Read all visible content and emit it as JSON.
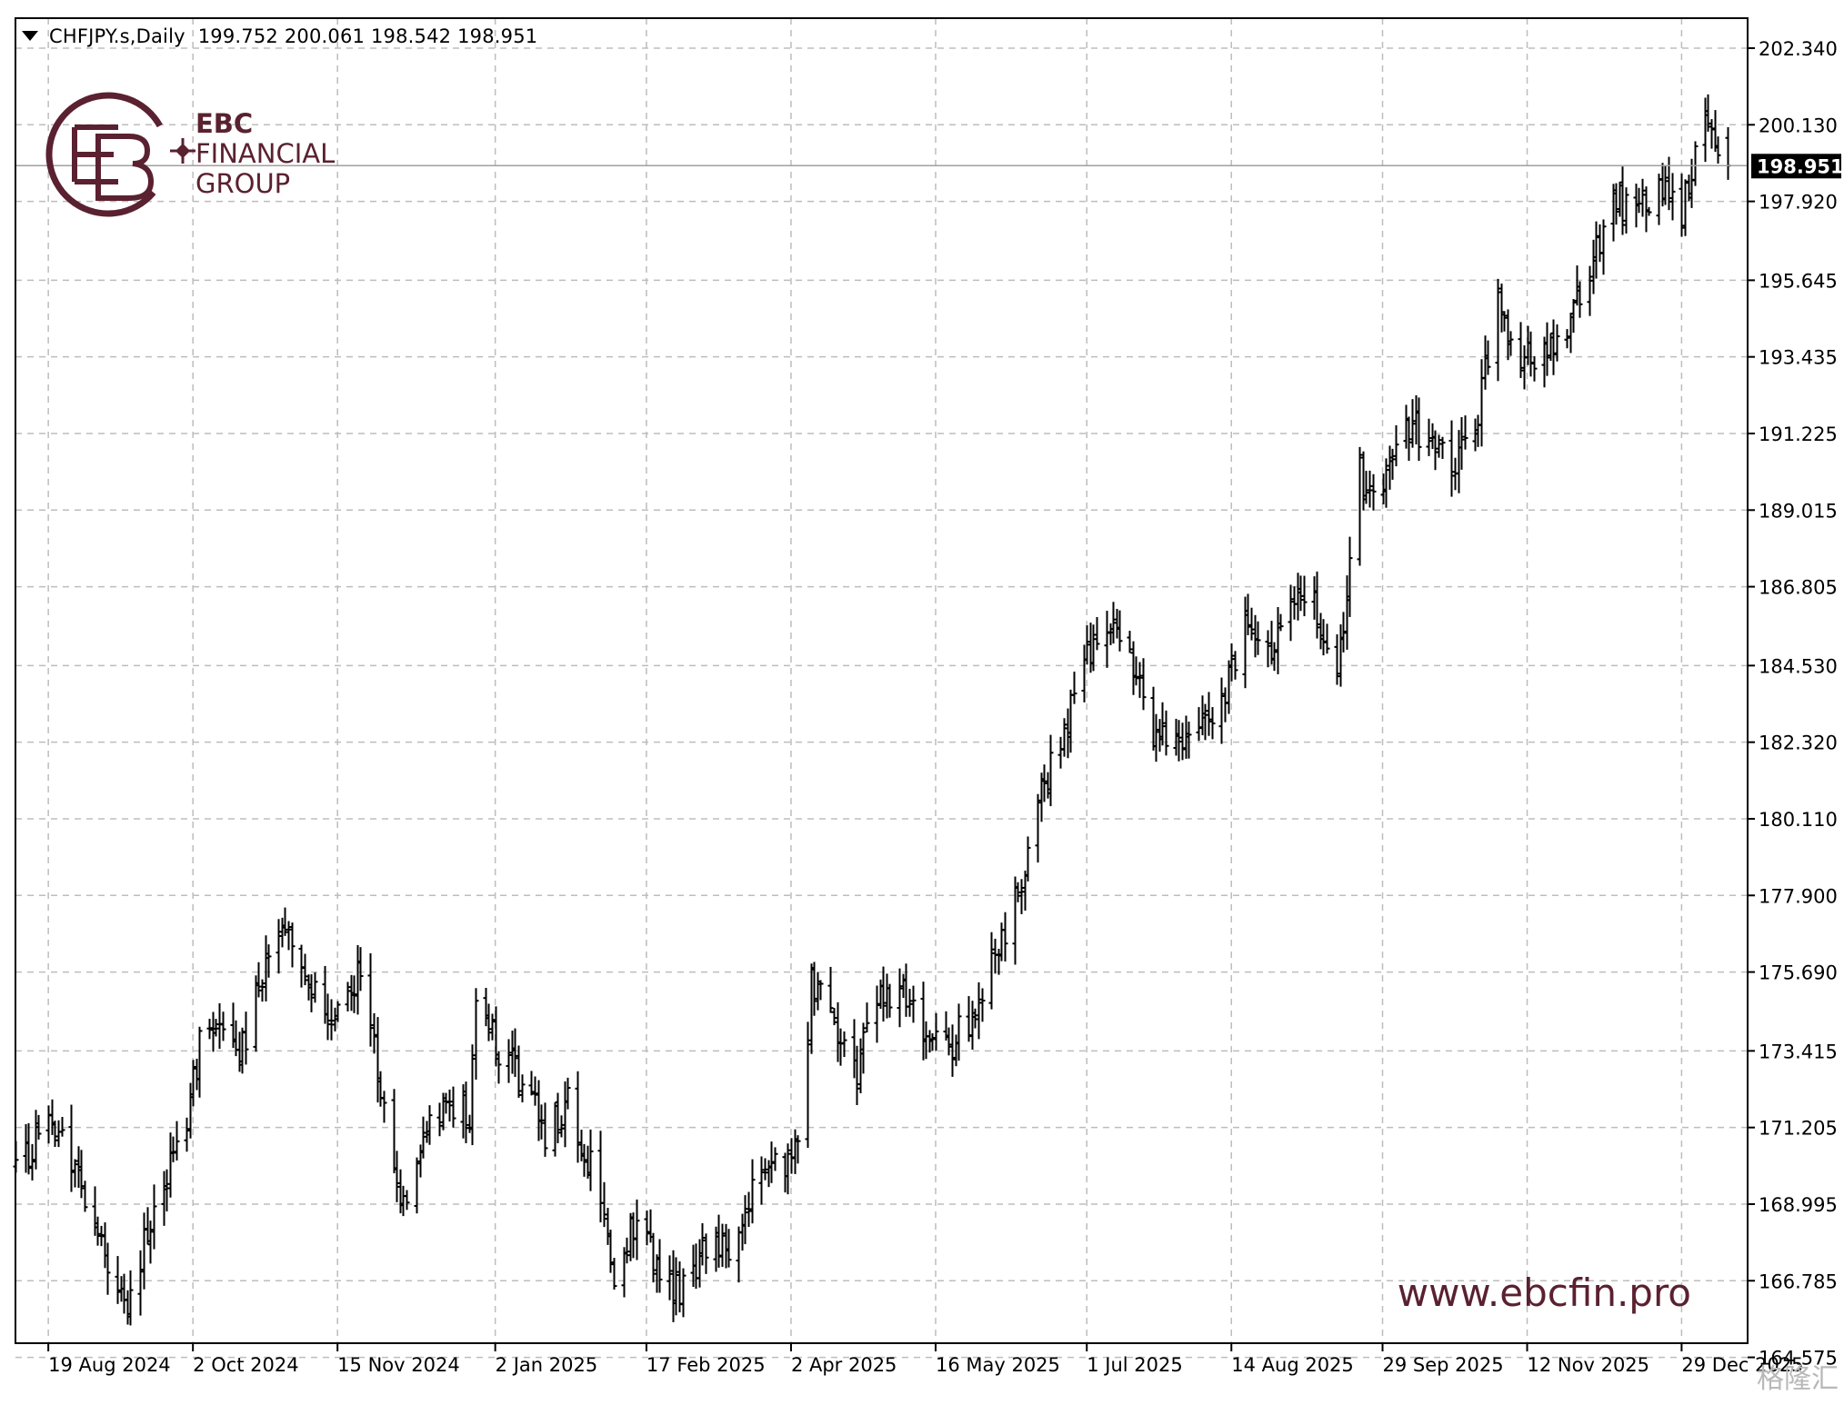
{
  "window": {
    "symbol_title": "CHFJPY.s,Daily",
    "ohlc": "199.752 200.061 198.542 198.951"
  },
  "brand": {
    "line1": "EBC",
    "line2": "FINANCIAL",
    "line3": "GROUP",
    "website": "www.ebcfin.pro",
    "watermark": "格隆汇"
  },
  "colors": {
    "brand": "#5a2130",
    "bars": "#000000",
    "grid": "#bdbdbd",
    "price_line": "#a0a0a0",
    "price_tag_bg": "#000000",
    "price_tag_text": "#ffffff"
  },
  "chart_data": {
    "type": "ohlc-bar",
    "symbol": "CHFJPY.s",
    "timeframe": "Daily",
    "current_price": 198.951,
    "current_price_label": "198.951",
    "ylim": [
      164.0,
      203.0
    ],
    "y_ticks": [
      "202.340",
      "200.130",
      "197.920",
      "195.645",
      "193.435",
      "191.225",
      "189.015",
      "186.805",
      "184.530",
      "182.320",
      "180.110",
      "177.900",
      "175.690",
      "173.415",
      "171.205",
      "168.995",
      "166.785",
      "164.575"
    ],
    "x_ticks": [
      "19 Aug 2024",
      "2 Oct 2024",
      "15 Nov 2024",
      "2 Jan 2025",
      "17 Feb 2025",
      "2 Apr 2025",
      "16 May 2025",
      "1 Jul 2025",
      "14 Aug 2025",
      "29 Sep 2025",
      "12 Nov 2025",
      "29 Dec 2025"
    ],
    "grid": true,
    "close_path": [
      {
        "date": "2024-08-09",
        "close": 170.0
      },
      {
        "date": "2024-08-16",
        "close": 171.0
      },
      {
        "date": "2024-08-23",
        "close": 171.5
      },
      {
        "date": "2024-08-30",
        "close": 169.0
      },
      {
        "date": "2024-09-06",
        "close": 167.0
      },
      {
        "date": "2024-09-11",
        "close": 166.0
      },
      {
        "date": "2024-09-18",
        "close": 168.0
      },
      {
        "date": "2024-09-25",
        "close": 170.0
      },
      {
        "date": "2024-09-30",
        "close": 171.5
      },
      {
        "date": "2024-10-04",
        "close": 173.5
      },
      {
        "date": "2024-10-11",
        "close": 174.0
      },
      {
        "date": "2024-10-18",
        "close": 173.5
      },
      {
        "date": "2024-10-25",
        "close": 176.5
      },
      {
        "date": "2024-10-31",
        "close": 177.0
      },
      {
        "date": "2024-11-07",
        "close": 175.5
      },
      {
        "date": "2024-11-14",
        "close": 174.5
      },
      {
        "date": "2024-11-21",
        "close": 175.5
      },
      {
        "date": "2024-11-28",
        "close": 172.5
      },
      {
        "date": "2024-12-04",
        "close": 169.0
      },
      {
        "date": "2024-12-11",
        "close": 171.0
      },
      {
        "date": "2024-12-18",
        "close": 172.0
      },
      {
        "date": "2024-12-25",
        "close": 171.5
      },
      {
        "date": "2024-12-27",
        "close": 175.0
      },
      {
        "date": "2025-01-03",
        "close": 173.5
      },
      {
        "date": "2025-01-10",
        "close": 172.5
      },
      {
        "date": "2025-01-17",
        "close": 171.0
      },
      {
        "date": "2025-01-24",
        "close": 172.0
      },
      {
        "date": "2025-01-31",
        "close": 170.0
      },
      {
        "date": "2025-02-07",
        "close": 167.0
      },
      {
        "date": "2025-02-14",
        "close": 168.5
      },
      {
        "date": "2025-02-21",
        "close": 167.0
      },
      {
        "date": "2025-02-28",
        "close": 166.5
      },
      {
        "date": "2025-03-07",
        "close": 168.0
      },
      {
        "date": "2025-03-14",
        "close": 167.5
      },
      {
        "date": "2025-03-21",
        "close": 169.5
      },
      {
        "date": "2025-03-28",
        "close": 170.0
      },
      {
        "date": "2025-04-04",
        "close": 170.5
      },
      {
        "date": "2025-04-08",
        "close": 175.5
      },
      {
        "date": "2025-04-15",
        "close": 174.0
      },
      {
        "date": "2025-04-22",
        "close": 173.0
      },
      {
        "date": "2025-04-29",
        "close": 175.0
      },
      {
        "date": "2025-05-06",
        "close": 175.5
      },
      {
        "date": "2025-05-13",
        "close": 173.5
      },
      {
        "date": "2025-05-20",
        "close": 173.5
      },
      {
        "date": "2025-05-27",
        "close": 174.5
      },
      {
        "date": "2025-06-03",
        "close": 176.0
      },
      {
        "date": "2025-06-10",
        "close": 178.0
      },
      {
        "date": "2025-06-17",
        "close": 181.0
      },
      {
        "date": "2025-06-24",
        "close": 182.5
      },
      {
        "date": "2025-06-30",
        "close": 185.0
      },
      {
        "date": "2025-07-07",
        "close": 185.5
      },
      {
        "date": "2025-07-14",
        "close": 185.0
      },
      {
        "date": "2025-07-21",
        "close": 182.5
      },
      {
        "date": "2025-07-28",
        "close": 182.5
      },
      {
        "date": "2025-08-04",
        "close": 183.0
      },
      {
        "date": "2025-08-11",
        "close": 183.5
      },
      {
        "date": "2025-08-18",
        "close": 185.5
      },
      {
        "date": "2025-08-25",
        "close": 185.0
      },
      {
        "date": "2025-09-01",
        "close": 186.0
      },
      {
        "date": "2025-09-08",
        "close": 186.5
      },
      {
        "date": "2025-09-15",
        "close": 184.0
      },
      {
        "date": "2025-09-22",
        "close": 190.0
      },
      {
        "date": "2025-09-29",
        "close": 189.5
      },
      {
        "date": "2025-10-06",
        "close": 191.5
      },
      {
        "date": "2025-10-13",
        "close": 191.0
      },
      {
        "date": "2025-10-20",
        "close": 190.0
      },
      {
        "date": "2025-10-27",
        "close": 191.5
      },
      {
        "date": "2025-11-03",
        "close": 195.0
      },
      {
        "date": "2025-11-10",
        "close": 193.5
      },
      {
        "date": "2025-11-17",
        "close": 193.5
      },
      {
        "date": "2025-11-24",
        "close": 194.5
      },
      {
        "date": "2025-12-01",
        "close": 196.0
      },
      {
        "date": "2025-12-08",
        "close": 198.0
      },
      {
        "date": "2025-12-15",
        "close": 197.5
      },
      {
        "date": "2025-12-22",
        "close": 198.5
      },
      {
        "date": "2025-12-29",
        "close": 197.5
      },
      {
        "date": "2026-01-05",
        "close": 200.5
      },
      {
        "date": "2026-01-12",
        "close": 198.951
      }
    ]
  }
}
